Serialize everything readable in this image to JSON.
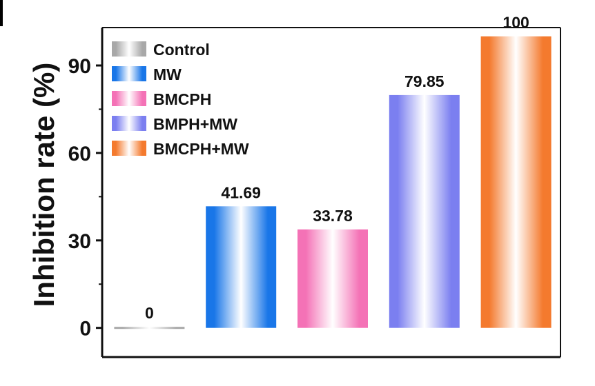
{
  "chart_data": {
    "type": "bar",
    "ylabel": "Inhibition rate (%)",
    "ylim": [
      -10,
      103
    ],
    "yticks": [
      0,
      30,
      60,
      90
    ],
    "grid": false,
    "legend_position": "top-left",
    "categories": [
      "Control",
      "MW",
      "BMCPH",
      "BMPH+MW",
      "BMCPH+MW"
    ],
    "values": [
      0,
      41.69,
      33.78,
      79.85,
      100
    ],
    "value_labels": [
      "0",
      "41.69",
      "33.78",
      "79.85",
      "100"
    ],
    "colors": [
      "#a8a8a8",
      "#1976e8",
      "#f472b6",
      "#7b7ff0",
      "#f47a2e"
    ]
  }
}
